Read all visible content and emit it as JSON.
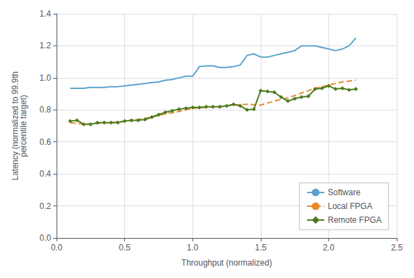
{
  "chart_data": {
    "type": "line",
    "xlabel": "Throughput (normalized)",
    "ylabel": "Latency (normalized to 99.9th\npercentile target)",
    "xlim": [
      0.0,
      2.5
    ],
    "ylim": [
      0.0,
      1.4
    ],
    "xticks": [
      {
        "value": 0.0,
        "label": "0.0"
      },
      0.5,
      {
        "value": 1.0,
        "label": "1.0"
      },
      1.5,
      {
        "value": 2.0,
        "label": "2.0"
      },
      2.5
    ],
    "yticks": [
      {
        "value": 0.0,
        "label": "0.0"
      },
      0.2,
      0.4,
      0.6,
      0.8,
      {
        "value": 1.0,
        "label": "1.0"
      },
      1.2,
      1.4
    ],
    "grid": true,
    "legend": "lower right",
    "series": [
      {
        "name": "Software",
        "color": "#5BA3CC",
        "line_style": "solid",
        "x": [
          0.1,
          0.15,
          0.2,
          0.25,
          0.3,
          0.35,
          0.4,
          0.45,
          0.5,
          0.55,
          0.6,
          0.65,
          0.7,
          0.75,
          0.8,
          0.85,
          0.9,
          0.95,
          1.0,
          1.05,
          1.1,
          1.15,
          1.2,
          1.25,
          1.3,
          1.35,
          1.4,
          1.45,
          1.5,
          1.55,
          1.6,
          1.65,
          1.7,
          1.75,
          1.8,
          1.85,
          1.9,
          1.95,
          2.0,
          2.05,
          2.1,
          2.15,
          2.2
        ],
        "values": [
          0.935,
          0.935,
          0.935,
          0.94,
          0.94,
          0.94,
          0.945,
          0.945,
          0.95,
          0.955,
          0.96,
          0.965,
          0.97,
          0.975,
          0.985,
          0.99,
          1.0,
          1.01,
          1.01,
          1.07,
          1.075,
          1.075,
          1.065,
          1.065,
          1.07,
          1.08,
          1.14,
          1.15,
          1.13,
          1.13,
          1.14,
          1.15,
          1.16,
          1.17,
          1.2,
          1.2,
          1.2,
          1.19,
          1.18,
          1.17,
          1.18,
          1.2,
          1.25
        ]
      },
      {
        "name": "Local FPGA",
        "color": "#E8872A",
        "line_style": "dashed",
        "x": [
          0.1,
          0.2,
          0.3,
          0.4,
          0.5,
          0.6,
          0.7,
          0.8,
          0.9,
          1.0,
          1.1,
          1.2,
          1.3,
          1.4,
          1.5,
          1.6,
          1.7,
          1.8,
          1.9,
          2.0,
          2.1,
          2.2
        ],
        "values": [
          0.72,
          0.71,
          0.715,
          0.72,
          0.73,
          0.74,
          0.755,
          0.775,
          0.79,
          0.81,
          0.815,
          0.82,
          0.83,
          0.835,
          0.83,
          0.855,
          0.875,
          0.905,
          0.935,
          0.955,
          0.975,
          0.985
        ]
      },
      {
        "name": "Remote FPGA",
        "color": "#4E7A1E",
        "line_style": "solid",
        "marker": "diamond",
        "x": [
          0.1,
          0.15,
          0.2,
          0.25,
          0.3,
          0.35,
          0.4,
          0.45,
          0.5,
          0.55,
          0.6,
          0.65,
          0.7,
          0.75,
          0.8,
          0.85,
          0.9,
          0.95,
          1.0,
          1.05,
          1.1,
          1.15,
          1.2,
          1.25,
          1.3,
          1.35,
          1.4,
          1.45,
          1.5,
          1.55,
          1.6,
          1.65,
          1.7,
          1.75,
          1.8,
          1.85,
          1.9,
          1.95,
          2.0,
          2.05,
          2.1,
          2.15,
          2.2
        ],
        "values": [
          0.73,
          0.735,
          0.71,
          0.71,
          0.72,
          0.72,
          0.72,
          0.72,
          0.73,
          0.735,
          0.735,
          0.74,
          0.755,
          0.77,
          0.785,
          0.795,
          0.805,
          0.81,
          0.815,
          0.815,
          0.82,
          0.82,
          0.82,
          0.825,
          0.835,
          0.825,
          0.8,
          0.805,
          0.92,
          0.915,
          0.91,
          0.88,
          0.855,
          0.87,
          0.88,
          0.885,
          0.93,
          0.935,
          0.95,
          0.93,
          0.935,
          0.925,
          0.93
        ]
      }
    ]
  }
}
